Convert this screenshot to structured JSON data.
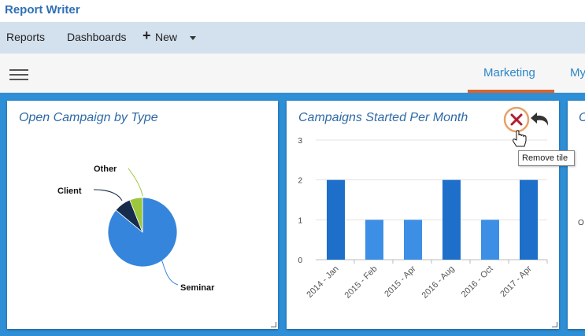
{
  "app": {
    "title": "Report Writer"
  },
  "menu": {
    "reports": "Reports",
    "dashboards": "Dashboards",
    "new": "New"
  },
  "tabs": [
    {
      "label": "Marketing",
      "active": true
    },
    {
      "label": "My"
    }
  ],
  "tiles": [
    {
      "title": "Open Campaign by Type"
    },
    {
      "title": "Campaigns Started Per Month",
      "tooltip": "Remove tile"
    },
    {
      "title": "C",
      "partial_text": "O"
    }
  ],
  "colors": {
    "accent": "#2e8fd6",
    "tab_underline": "#d9642c",
    "title": "#2e6aa6",
    "remove": "#b01e2e",
    "remove_ring": "#e8a166"
  },
  "icons": {
    "remove": "close-icon",
    "undo": "undo-icon",
    "cursor": "hand-pointer-icon",
    "menu": "hamburger-icon"
  },
  "chart_data": [
    {
      "type": "pie",
      "title": "Open Campaign by Type",
      "categories": [
        "Seminar",
        "Client",
        "Other"
      ],
      "values": [
        86,
        8,
        6
      ],
      "colors": [
        "#3585dc",
        "#162c4a",
        "#9cc63b"
      ]
    },
    {
      "type": "bar",
      "title": "Campaigns Started Per Month",
      "categories": [
        "2014 - Jan",
        "2015 - Feb",
        "2015 - Apr",
        "2016 - Aug",
        "2016 - Oct",
        "2017 - Apr"
      ],
      "values": [
        2,
        1,
        1,
        2,
        1,
        2
      ],
      "ylim": [
        0,
        3
      ],
      "yticks": [
        "0",
        "1",
        "2",
        "3"
      ],
      "colors": [
        "#1e6fca",
        "#3d8fe6"
      ]
    }
  ]
}
